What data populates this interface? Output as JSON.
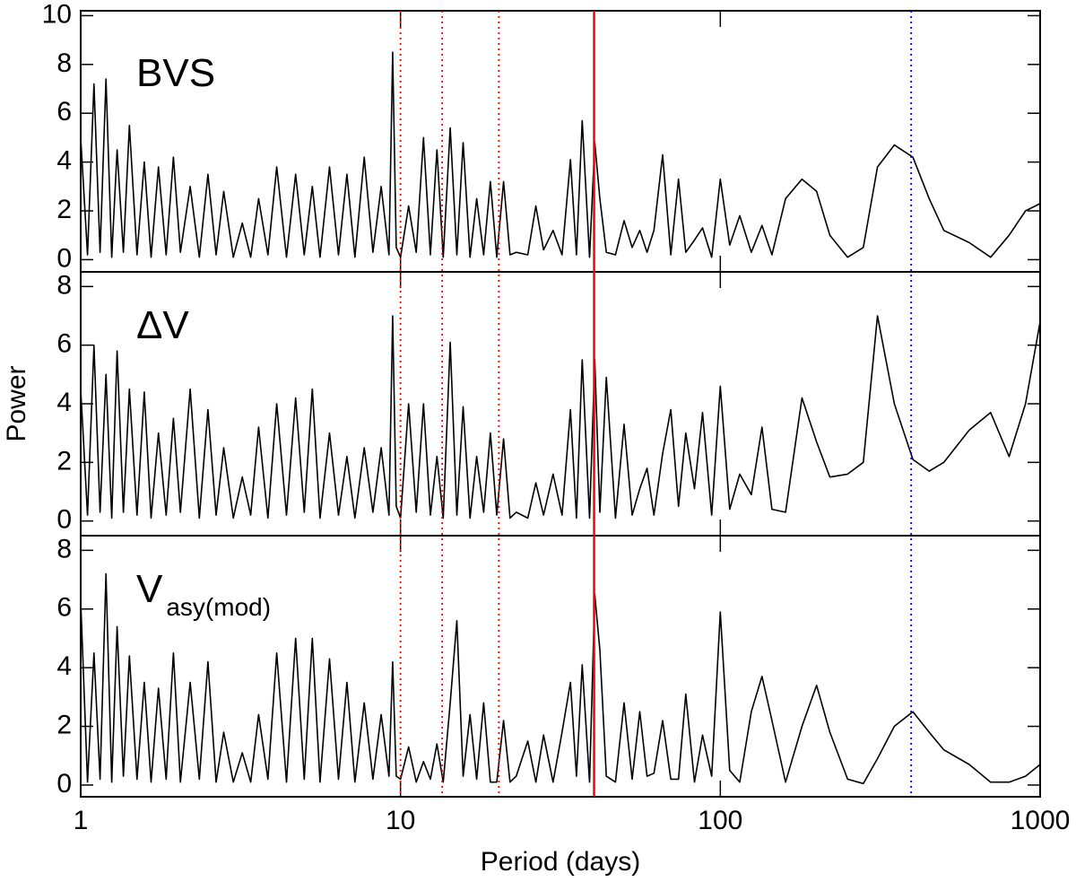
{
  "chart_data": [
    {
      "type": "line",
      "title": "BVS",
      "color": "#000000",
      "ylabel": "Power",
      "x": [
        1.0,
        1.05,
        1.1,
        1.15,
        1.2,
        1.25,
        1.3,
        1.36,
        1.42,
        1.5,
        1.58,
        1.66,
        1.75,
        1.85,
        1.95,
        2.05,
        2.2,
        2.35,
        2.5,
        2.65,
        2.8,
        3.0,
        3.2,
        3.4,
        3.6,
        3.85,
        4.1,
        4.4,
        4.7,
        5.0,
        5.3,
        5.6,
        6.0,
        6.4,
        6.8,
        7.2,
        7.7,
        8.2,
        8.7,
        9.2,
        9.45,
        9.7,
        10.0,
        10.6,
        11.2,
        11.8,
        12.4,
        13.0,
        13.6,
        14.3,
        15.0,
        15.7,
        16.5,
        17.3,
        18.2,
        19.1,
        20.0,
        21.0,
        22.0,
        23.0,
        25,
        26.5,
        28,
        30,
        32,
        34,
        35.5,
        37,
        39,
        40.5,
        42,
        44,
        47,
        50,
        53,
        56,
        59,
        62,
        66,
        70,
        74,
        78,
        83,
        88,
        94,
        100,
        107,
        115,
        125,
        135,
        145,
        160,
        180,
        200,
        220,
        250,
        280,
        310,
        350,
        400,
        450,
        500,
        600,
        700,
        800,
        900,
        1000
      ],
      "values": [
        5,
        0.2,
        7.2,
        0.3,
        7.4,
        0.1,
        4.5,
        0.3,
        5.5,
        0.2,
        4,
        0.1,
        3.8,
        0.2,
        4.2,
        0.3,
        3,
        0.1,
        3.5,
        0.2,
        2.8,
        0.1,
        1.5,
        0.1,
        2.5,
        0.2,
        3.8,
        0.1,
        3.5,
        0.2,
        3,
        0.1,
        3.8,
        0.2,
        3.5,
        0.1,
        4.2,
        0.3,
        3,
        0.2,
        8.5,
        0.5,
        0.1,
        2.2,
        0.3,
        5,
        0.2,
        4.5,
        0.1,
        5.4,
        0.2,
        4.8,
        0.1,
        2.5,
        0.2,
        3.2,
        0.1,
        3.2,
        0.2,
        0.3,
        0.2,
        2.2,
        0.4,
        1.2,
        0.2,
        4.1,
        0.2,
        5.7,
        0.1,
        4.8,
        2.5,
        0.3,
        0.2,
        1.6,
        0.5,
        1.2,
        0.3,
        1.2,
        4.3,
        0.2,
        3.3,
        0.3,
        0.8,
        1.3,
        0.1,
        3.3,
        0.6,
        1.8,
        0.3,
        1.4,
        0.2,
        2.5,
        3.3,
        2.8,
        1,
        0.1,
        0.5,
        3.8,
        4.7,
        4.2,
        2.5,
        1.2,
        0.7,
        0.1,
        1,
        2,
        2.3
      ],
      "xlim": [
        1,
        1000
      ],
      "ylim": [
        -0.5,
        10.2
      ],
      "yticks": [
        0,
        2,
        4,
        6,
        8,
        10
      ]
    },
    {
      "type": "line",
      "title": "ΔV",
      "color": "#000000",
      "x": [
        1.0,
        1.05,
        1.1,
        1.15,
        1.2,
        1.25,
        1.3,
        1.36,
        1.42,
        1.5,
        1.58,
        1.66,
        1.75,
        1.85,
        1.95,
        2.05,
        2.2,
        2.35,
        2.5,
        2.65,
        2.8,
        3.0,
        3.2,
        3.4,
        3.6,
        3.85,
        4.1,
        4.4,
        4.7,
        5.0,
        5.3,
        5.6,
        6.0,
        6.4,
        6.8,
        7.2,
        7.7,
        8.2,
        8.7,
        9.2,
        9.45,
        9.7,
        10.0,
        10.6,
        11.2,
        11.8,
        12.4,
        13.0,
        13.6,
        14.3,
        15.0,
        15.7,
        16.5,
        17.3,
        18.2,
        19.1,
        20.0,
        21.0,
        22.0,
        23.0,
        25,
        26.5,
        28,
        30,
        32,
        34,
        35.5,
        37,
        39,
        40.5,
        42,
        44,
        47,
        50,
        53,
        56,
        59,
        62,
        66,
        70,
        74,
        78,
        83,
        88,
        94,
        100,
        107,
        115,
        125,
        135,
        145,
        160,
        180,
        200,
        220,
        250,
        280,
        310,
        350,
        400,
        450,
        500,
        600,
        700,
        800,
        900,
        1000
      ],
      "values": [
        4.5,
        0.2,
        6,
        0.3,
        5,
        0.1,
        5.8,
        0.3,
        4.5,
        0.2,
        4.4,
        0.1,
        3,
        0.2,
        3.5,
        0.3,
        4.5,
        0.1,
        3.8,
        0.2,
        2.5,
        0.1,
        1.5,
        0.2,
        3.2,
        0.1,
        4,
        0.2,
        4.2,
        0.3,
        4.5,
        0.1,
        3,
        0.2,
        2.2,
        0.1,
        2.5,
        0.3,
        2.5,
        0.2,
        7,
        0.5,
        0.1,
        4,
        0.3,
        4,
        0.2,
        2.2,
        0.1,
        6.1,
        0.2,
        3.9,
        0.1,
        2.2,
        0.3,
        3,
        0.2,
        2.8,
        0.1,
        0.3,
        0.1,
        1.3,
        0.2,
        1.6,
        0.2,
        3.8,
        0.1,
        5.5,
        0.1,
        5.5,
        0.3,
        4.9,
        0.1,
        3.3,
        0.2,
        1.1,
        1.8,
        0.2,
        2.3,
        3.8,
        0.5,
        3,
        1.1,
        3.7,
        0.2,
        4.6,
        0.4,
        1.6,
        0.9,
        3.2,
        0.4,
        0.3,
        4.2,
        2.7,
        1.5,
        1.6,
        2,
        7,
        4,
        2.1,
        1.7,
        2,
        3.1,
        3.7,
        2.2,
        4,
        6.8
      ],
      "xlim": [
        1,
        1000
      ],
      "ylim": [
        -0.5,
        8.5
      ],
      "yticks": [
        0,
        2,
        4,
        6,
        8
      ]
    },
    {
      "type": "line",
      "title": "V",
      "title_subscript": "asy(mod)",
      "color": "#000000",
      "xlabel": "Period (days)",
      "x": [
        1.0,
        1.05,
        1.1,
        1.15,
        1.2,
        1.25,
        1.3,
        1.36,
        1.42,
        1.5,
        1.58,
        1.66,
        1.75,
        1.85,
        1.95,
        2.05,
        2.2,
        2.35,
        2.5,
        2.65,
        2.8,
        3.0,
        3.2,
        3.4,
        3.6,
        3.85,
        4.1,
        4.4,
        4.7,
        5.0,
        5.3,
        5.6,
        6.0,
        6.4,
        6.8,
        7.2,
        7.7,
        8.2,
        8.7,
        9.2,
        9.45,
        9.7,
        10.0,
        10.6,
        11.2,
        11.8,
        12.4,
        13.0,
        13.6,
        14.3,
        15.0,
        15.7,
        16.5,
        17.3,
        18.2,
        19.1,
        20.0,
        21.0,
        22.0,
        23.0,
        25,
        26.5,
        28,
        30,
        32,
        34,
        35.5,
        37,
        39,
        40.5,
        42,
        44,
        47,
        50,
        53,
        56,
        59,
        62,
        66,
        70,
        74,
        78,
        83,
        88,
        94,
        100,
        107,
        115,
        125,
        135,
        145,
        160,
        180,
        200,
        220,
        250,
        280,
        310,
        350,
        400,
        450,
        500,
        600,
        700,
        800,
        900,
        1000
      ],
      "values": [
        6.3,
        0.1,
        4.5,
        0.2,
        7.2,
        0.1,
        5.4,
        0.3,
        4.4,
        0.2,
        3.5,
        0.1,
        3.3,
        0.2,
        4.5,
        0.1,
        3.5,
        0.2,
        4.2,
        0.1,
        1.8,
        0.1,
        1.1,
        0.1,
        2.4,
        0.2,
        4.5,
        0.1,
        5,
        0.2,
        5,
        0.1,
        4.3,
        0.2,
        3.5,
        0.1,
        2.8,
        0.2,
        2.4,
        0.3,
        4.2,
        0.3,
        0.2,
        1.3,
        0.1,
        0.8,
        0.2,
        1.4,
        0.1,
        2.8,
        5.6,
        0.3,
        2.4,
        0.2,
        2.8,
        0.1,
        0.1,
        2.2,
        0.1,
        0.3,
        1.5,
        0.1,
        1.7,
        0.1,
        1.8,
        3.5,
        0.3,
        4.1,
        0.1,
        6.5,
        4.6,
        0.3,
        0.1,
        2.8,
        0.2,
        2.5,
        0.3,
        0.4,
        2.2,
        0.2,
        0.2,
        3.1,
        0.1,
        1.7,
        0.3,
        5.9,
        0.5,
        0.1,
        2.5,
        3.7,
        2.2,
        0.1,
        2.0,
        3.4,
        1.8,
        0.2,
        0.05,
        0.9,
        2.0,
        2.5,
        1.8,
        1.2,
        0.7,
        0.1,
        0.1,
        0.3,
        0.7
      ],
      "xlim": [
        1,
        1000
      ],
      "ylim": [
        -0.4,
        8.5
      ],
      "yticks": [
        0,
        2,
        4,
        6,
        8
      ],
      "xticks": [
        1,
        10,
        100,
        1000
      ]
    }
  ],
  "reference_lines": [
    {
      "x": 10,
      "color": "#ff0000",
      "style": "dotted"
    },
    {
      "x": 13.5,
      "color": "#ff0000",
      "style": "dotted"
    },
    {
      "x": 20.3,
      "color": "#ff0000",
      "style": "dotted"
    },
    {
      "x": 40.3,
      "color": "#ff0000",
      "style": "solid"
    },
    {
      "x": 395,
      "color": "#0000ff",
      "style": "dotted"
    }
  ]
}
